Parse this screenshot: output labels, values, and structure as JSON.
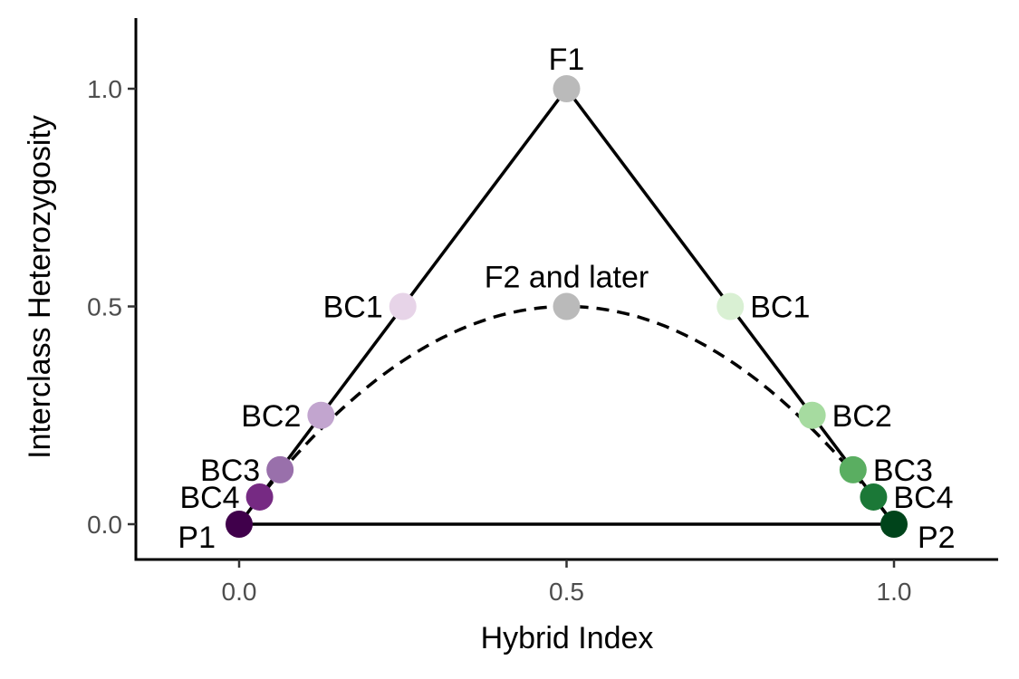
{
  "chart_data": {
    "type": "scatter",
    "xlabel": "Hybrid Index",
    "ylabel": "Interclass Heterozygosity",
    "xlim": [
      -0.16,
      1.16
    ],
    "ylim": [
      -0.08,
      1.16
    ],
    "x_ticks": [
      {
        "value": 0.0,
        "label": "0.0"
      },
      {
        "value": 0.5,
        "label": "0.5"
      },
      {
        "value": 1.0,
        "label": "1.0"
      }
    ],
    "y_ticks": [
      {
        "value": 0.0,
        "label": "0.0"
      },
      {
        "value": 0.5,
        "label": "0.5"
      },
      {
        "value": 1.0,
        "label": "1.0"
      }
    ],
    "grid": false,
    "lines": [
      {
        "style": "solid",
        "x": [
          0,
          0.5,
          1,
          0
        ],
        "y": [
          0,
          1,
          0,
          0
        ]
      },
      {
        "style": "dashed",
        "function": "2*x*(1-x)",
        "x_range": [
          0,
          1
        ]
      }
    ],
    "points": [
      {
        "label": "P1",
        "x": 0,
        "y": 0,
        "color": "#40004b",
        "label_side": "below-left"
      },
      {
        "label": "BC4",
        "x": 0.03125,
        "y": 0.0625,
        "color": "#762a83",
        "label_side": "left"
      },
      {
        "label": "BC3",
        "x": 0.0625,
        "y": 0.125,
        "color": "#9970ab",
        "label_side": "left"
      },
      {
        "label": "BC2",
        "x": 0.125,
        "y": 0.25,
        "color": "#c2a5cf",
        "label_side": "left"
      },
      {
        "label": "BC1",
        "x": 0.25,
        "y": 0.5,
        "color": "#e7d4e8",
        "label_side": "left"
      },
      {
        "label": "F1",
        "x": 0.5,
        "y": 1,
        "color": "#bababa",
        "label_side": "top"
      },
      {
        "label": "F2 and later",
        "x": 0.5,
        "y": 0.5,
        "color": "#bababa",
        "label_side": "top"
      },
      {
        "label": "BC1",
        "x": 0.75,
        "y": 0.5,
        "color": "#d9f0d3",
        "label_side": "right"
      },
      {
        "label": "BC2",
        "x": 0.875,
        "y": 0.25,
        "color": "#a6dba0",
        "label_side": "right"
      },
      {
        "label": "BC3",
        "x": 0.9375,
        "y": 0.125,
        "color": "#5aae61",
        "label_side": "right"
      },
      {
        "label": "BC4",
        "x": 0.96875,
        "y": 0.0625,
        "color": "#1b7837",
        "label_side": "right"
      },
      {
        "label": "P2",
        "x": 1,
        "y": 0,
        "color": "#00441b",
        "label_side": "below-right"
      }
    ]
  }
}
